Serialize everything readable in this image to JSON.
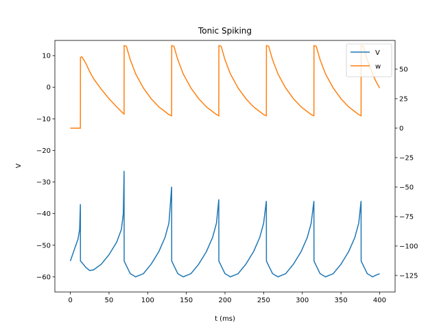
{
  "chart_data": {
    "type": "line",
    "title": "Tonic Spiking",
    "xlabel": "t (ms)",
    "ylabel": "V",
    "x": [
      0,
      5,
      10,
      12,
      13,
      13.1,
      15,
      20,
      25,
      30,
      40,
      50,
      60,
      66,
      68.5,
      69.5,
      69.6,
      72.5,
      77.5,
      84.5,
      94.5,
      104.5,
      114.5,
      122.5,
      127.5,
      131,
      131.1,
      134,
      139,
      146,
      156,
      166,
      176,
      184,
      189,
      192,
      192.1,
      195,
      200,
      207,
      217,
      227,
      237,
      245,
      250,
      253.5,
      253.6,
      256.5,
      261.5,
      268.5,
      278.5,
      288.5,
      298.5,
      306.5,
      311.5,
      315,
      315.1,
      318,
      323,
      330,
      340,
      350,
      360,
      368,
      373,
      376,
      376.1,
      379,
      384,
      391,
      395,
      400
    ],
    "series": [
      {
        "name": "V",
        "color": "#1f77b4",
        "values": [
          -55,
          -51.5,
          -48,
          -45,
          -37,
          -55,
          -55.5,
          -57,
          -58,
          -57.8,
          -56,
          -53,
          -49,
          -45,
          -40,
          -26.5,
          -55,
          -56.5,
          -59,
          -60,
          -59,
          -56,
          -52,
          -47.5,
          -43,
          -31.5,
          -55,
          -56.5,
          -59,
          -60,
          -59,
          -56,
          -52,
          -47.5,
          -43,
          -35.5,
          -55,
          -56.5,
          -59,
          -60,
          -59,
          -56,
          -52,
          -47.5,
          -43,
          -36,
          -55,
          -56.5,
          -59,
          -60,
          -59,
          -56,
          -52,
          -47.5,
          -43,
          -36,
          -55,
          -56.5,
          -59,
          -60,
          -59,
          -56,
          -52,
          -47.5,
          -43,
          -36,
          -55,
          -56.5,
          -59,
          -60,
          -59.5,
          -59
        ]
      },
      {
        "name": "w",
        "color": "#ff7f0e",
        "axis": "y2",
        "values": [
          0,
          0,
          0,
          0,
          0,
          60,
          60.5,
          55,
          48,
          42,
          33,
          25,
          18,
          14,
          12.5,
          12,
          70,
          69.5,
          58,
          46,
          34,
          25,
          18,
          14,
          11.5,
          10.5,
          70,
          69.5,
          58,
          46,
          34,
          25,
          18,
          14,
          11.5,
          10.5,
          70,
          69.5,
          58,
          46,
          34,
          25,
          18,
          14,
          11.5,
          10.5,
          70,
          69.5,
          58,
          46,
          34,
          25,
          18,
          14,
          11.5,
          10.5,
          70,
          69.5,
          58,
          46,
          34,
          25,
          18,
          14,
          11.5,
          10.5,
          70,
          69.5,
          58,
          46,
          40,
          34
        ]
      }
    ],
    "xlim": [
      -20,
      420
    ],
    "xticks": [
      0,
      50,
      100,
      150,
      200,
      250,
      300,
      350,
      400
    ],
    "ylim": [
      -64.8,
      14.8
    ],
    "yticks": [
      {
        "value": -60,
        "label": "−60"
      },
      {
        "value": -50,
        "label": "−50"
      },
      {
        "value": -40,
        "label": "−40"
      },
      {
        "value": -30,
        "label": "−30"
      },
      {
        "value": -20,
        "label": "−20"
      },
      {
        "value": -10,
        "label": "−10"
      },
      0,
      10
    ],
    "y2lim": [
      -139,
      74.4
    ],
    "y2ticks": [
      {
        "value": -125,
        "label": "−125"
      },
      {
        "value": -100,
        "label": "−100"
      },
      {
        "value": -75,
        "label": "−75"
      },
      {
        "value": -50,
        "label": "−50"
      },
      {
        "value": -25,
        "label": "−25"
      },
      0,
      25,
      50
    ],
    "legend": "upper right"
  }
}
